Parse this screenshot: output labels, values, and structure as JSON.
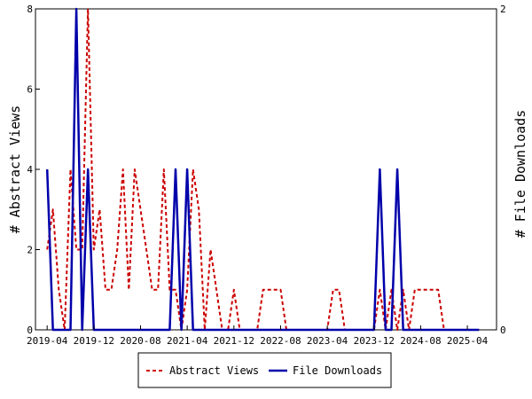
{
  "chart_data": {
    "type": "line",
    "title": "",
    "ylabel_left": "# Abstract Views",
    "ylabel_right": "# File Downloads",
    "x_tick_labels": [
      "2019-04",
      "2019-12",
      "2020-08",
      "2021-04",
      "2021-12",
      "2022-08",
      "2023-04",
      "2023-12",
      "2024-08",
      "2025-04"
    ],
    "ylim_left": [
      0,
      8
    ],
    "ylim_right": [
      0,
      2
    ],
    "y_ticks_left": [
      "0",
      "2",
      "4",
      "6",
      "8"
    ],
    "y_ticks_right": [
      "0",
      "2"
    ],
    "legend_placement": "bottom-center",
    "grid": false,
    "series": [
      {
        "name": "Abstract Views",
        "axis": "left",
        "color": "#cc0000",
        "style": "dashed",
        "points": [
          [
            "2019-04",
            2
          ],
          [
            "2019-05",
            3
          ],
          [
            "2019-06",
            1
          ],
          [
            "2019-07",
            0
          ],
          [
            "2019-08",
            4
          ],
          [
            "2019-09",
            2
          ],
          [
            "2019-10",
            2
          ],
          [
            "2019-11",
            8
          ],
          [
            "2019-12",
            2
          ],
          [
            "2020-01",
            3
          ],
          [
            "2020-02",
            1
          ],
          [
            "2020-03",
            1
          ],
          [
            "2020-04",
            2
          ],
          [
            "2020-05",
            4
          ],
          [
            "2020-06",
            1
          ],
          [
            "2020-07",
            4
          ],
          [
            "2020-08",
            3
          ],
          [
            "2020-09",
            2
          ],
          [
            "2020-10",
            1
          ],
          [
            "2020-11",
            1
          ],
          [
            "2020-12",
            4
          ],
          [
            "2021-01",
            1
          ],
          [
            "2021-02",
            1
          ],
          [
            "2021-03",
            0
          ],
          [
            "2021-04",
            1
          ],
          [
            "2021-05",
            4
          ],
          [
            "2021-06",
            3
          ],
          [
            "2021-07",
            0
          ],
          [
            "2021-08",
            2
          ],
          [
            "2021-09",
            1
          ],
          [
            "2021-10",
            0
          ],
          [
            "2021-11",
            0
          ],
          [
            "2021-12",
            1
          ],
          [
            "2022-01",
            0
          ],
          [
            "2022-02",
            0
          ],
          [
            "2022-03",
            0
          ],
          [
            "2022-04",
            0
          ],
          [
            "2022-05",
            1
          ],
          [
            "2022-06",
            1
          ],
          [
            "2022-07",
            1
          ],
          [
            "2022-08",
            1
          ],
          [
            "2022-09",
            0
          ],
          [
            "2022-10",
            0
          ],
          [
            "2022-11",
            0
          ],
          [
            "2022-12",
            0
          ],
          [
            "2023-01",
            0
          ],
          [
            "2023-02",
            0
          ],
          [
            "2023-03",
            0
          ],
          [
            "2023-04",
            0
          ],
          [
            "2023-05",
            1
          ],
          [
            "2023-06",
            1
          ],
          [
            "2023-07",
            0
          ],
          [
            "2023-08",
            0
          ],
          [
            "2023-09",
            0
          ],
          [
            "2023-10",
            0
          ],
          [
            "2023-11",
            0
          ],
          [
            "2023-12",
            0
          ],
          [
            "2024-01",
            1
          ],
          [
            "2024-02",
            0
          ],
          [
            "2024-03",
            1
          ],
          [
            "2024-04",
            0
          ],
          [
            "2024-05",
            1
          ],
          [
            "2024-06",
            0
          ],
          [
            "2024-07",
            1
          ],
          [
            "2024-08",
            1
          ],
          [
            "2024-09",
            1
          ],
          [
            "2024-10",
            1
          ],
          [
            "2024-11",
            1
          ],
          [
            "2024-12",
            0
          ],
          [
            "2025-01",
            0
          ],
          [
            "2025-02",
            0
          ],
          [
            "2025-03",
            0
          ],
          [
            "2025-04",
            0
          ],
          [
            "2025-05",
            0
          ],
          [
            "2025-06",
            0
          ]
        ]
      },
      {
        "name": "File Downloads",
        "axis": "right",
        "color": "#0000aa",
        "style": "solid",
        "points": [
          [
            "2019-04",
            1
          ],
          [
            "2019-05",
            0
          ],
          [
            "2019-06",
            0
          ],
          [
            "2019-07",
            0
          ],
          [
            "2019-08",
            0
          ],
          [
            "2019-09",
            2
          ],
          [
            "2019-10",
            0
          ],
          [
            "2019-11",
            1
          ],
          [
            "2019-12",
            0
          ],
          [
            "2020-01",
            0
          ],
          [
            "2020-02",
            0
          ],
          [
            "2020-03",
            0
          ],
          [
            "2020-04",
            0
          ],
          [
            "2020-05",
            0
          ],
          [
            "2020-06",
            0
          ],
          [
            "2020-07",
            0
          ],
          [
            "2020-08",
            0
          ],
          [
            "2020-09",
            0
          ],
          [
            "2020-10",
            0
          ],
          [
            "2020-11",
            0
          ],
          [
            "2020-12",
            0
          ],
          [
            "2021-01",
            0
          ],
          [
            "2021-02",
            1
          ],
          [
            "2021-03",
            0
          ],
          [
            "2021-04",
            1
          ],
          [
            "2021-05",
            0
          ],
          [
            "2021-06",
            0
          ],
          [
            "2021-07",
            0
          ],
          [
            "2021-08",
            0
          ],
          [
            "2021-09",
            0
          ],
          [
            "2021-10",
            0
          ],
          [
            "2021-11",
            0
          ],
          [
            "2021-12",
            0
          ],
          [
            "2022-01",
            0
          ],
          [
            "2022-02",
            0
          ],
          [
            "2022-03",
            0
          ],
          [
            "2022-04",
            0
          ],
          [
            "2022-05",
            0
          ],
          [
            "2022-06",
            0
          ],
          [
            "2022-07",
            0
          ],
          [
            "2022-08",
            0
          ],
          [
            "2022-09",
            0
          ],
          [
            "2022-10",
            0
          ],
          [
            "2022-11",
            0
          ],
          [
            "2022-12",
            0
          ],
          [
            "2023-01",
            0
          ],
          [
            "2023-02",
            0
          ],
          [
            "2023-03",
            0
          ],
          [
            "2023-04",
            0
          ],
          [
            "2023-05",
            0
          ],
          [
            "2023-06",
            0
          ],
          [
            "2023-07",
            0
          ],
          [
            "2023-08",
            0
          ],
          [
            "2023-09",
            0
          ],
          [
            "2023-10",
            0
          ],
          [
            "2023-11",
            0
          ],
          [
            "2023-12",
            0
          ],
          [
            "2024-01",
            1
          ],
          [
            "2024-02",
            0
          ],
          [
            "2024-03",
            0
          ],
          [
            "2024-04",
            1
          ],
          [
            "2024-05",
            0
          ],
          [
            "2024-06",
            0
          ],
          [
            "2024-07",
            0
          ],
          [
            "2024-08",
            0
          ],
          [
            "2024-09",
            0
          ],
          [
            "2024-10",
            0
          ],
          [
            "2024-11",
            0
          ],
          [
            "2024-12",
            0
          ],
          [
            "2025-01",
            0
          ],
          [
            "2025-02",
            0
          ],
          [
            "2025-03",
            0
          ],
          [
            "2025-04",
            0
          ],
          [
            "2025-05",
            0
          ],
          [
            "2025-06",
            0
          ]
        ]
      }
    ]
  }
}
